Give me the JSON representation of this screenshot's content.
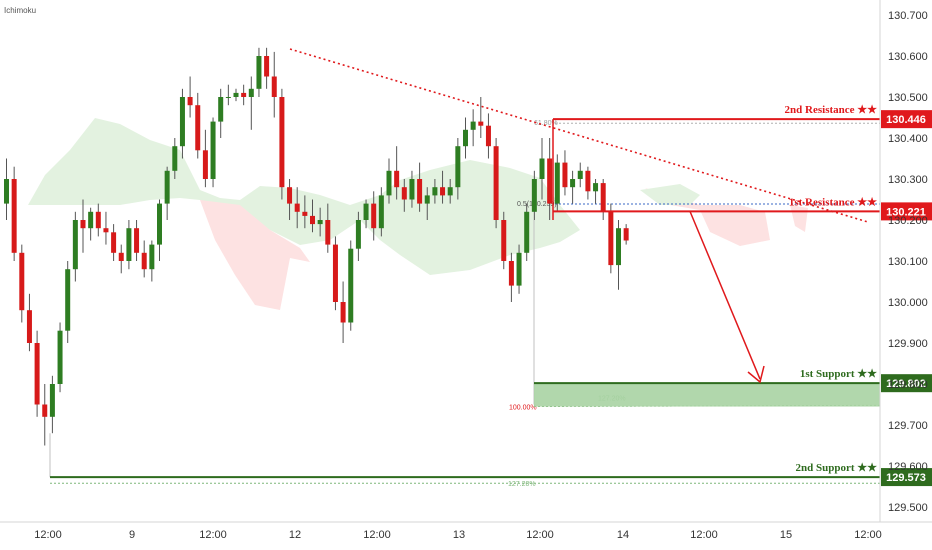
{
  "indicator_label": "Ichimoku",
  "colors": {
    "bull": "#2e7d22",
    "bear": "#d71a1a",
    "resistance": "#e0191c",
    "support": "#2e6b1e",
    "cloud_bull": "#e3f2e0",
    "cloud_bear": "#fde2e2"
  },
  "chart_data": {
    "type": "candlestick",
    "title": "",
    "xlabel": "",
    "ylabel": "",
    "ylim": [
      129.45,
      130.73
    ],
    "y_ticks": [
      "130.700",
      "130.600",
      "130.500",
      "130.400",
      "130.300",
      "130.200",
      "130.100",
      "130.000",
      "129.900",
      "129.800",
      "129.700",
      "129.600",
      "129.500"
    ],
    "x_ticks": [
      "12:00",
      "9",
      "12:00",
      "12",
      "12:00",
      "13",
      "12:00",
      "14",
      "12:00",
      "15",
      "12:00"
    ],
    "grid": false,
    "levels": [
      {
        "label": "2nd Resistance ★★",
        "value": "130.446",
        "price": 130.446,
        "kind": "resistance"
      },
      {
        "label": "1st Resistance ★★",
        "value": "130.221",
        "price": 130.221,
        "kind": "resistance"
      },
      {
        "label": "1st Support ★★",
        "value": "129.802",
        "price": 129.802,
        "kind": "support"
      },
      {
        "label": "2nd Support ★★",
        "value": "129.573",
        "price": 129.573,
        "kind": "support"
      }
    ],
    "fib_labels": {
      "top_618": "61.80%",
      "mid_05": "0.5(130.239)",
      "ext_100": "100.00%",
      "ext_1272_a": "127.20%",
      "ext_1272_b": "127.20%"
    },
    "candles": [
      [
        130.24,
        130.35,
        130.2,
        130.3
      ],
      [
        130.3,
        130.33,
        130.1,
        130.12
      ],
      [
        130.12,
        130.14,
        129.95,
        129.98
      ],
      [
        129.98,
        130.02,
        129.88,
        129.9
      ],
      [
        129.9,
        129.93,
        129.72,
        129.75
      ],
      [
        129.75,
        129.8,
        129.65,
        129.72
      ],
      [
        129.72,
        129.82,
        129.68,
        129.8
      ],
      [
        129.8,
        129.95,
        129.78,
        129.93
      ],
      [
        129.93,
        130.1,
        129.9,
        130.08
      ],
      [
        130.08,
        130.22,
        130.05,
        130.2
      ],
      [
        130.2,
        130.25,
        130.12,
        130.18
      ],
      [
        130.18,
        130.23,
        130.15,
        130.22
      ],
      [
        130.22,
        130.24,
        130.16,
        130.18
      ],
      [
        130.18,
        130.22,
        130.14,
        130.17
      ],
      [
        130.17,
        130.19,
        130.1,
        130.12
      ],
      [
        130.12,
        130.14,
        130.07,
        130.1
      ],
      [
        130.1,
        130.2,
        130.08,
        130.18
      ],
      [
        130.18,
        130.2,
        130.1,
        130.12
      ],
      [
        130.12,
        130.15,
        130.06,
        130.08
      ],
      [
        130.08,
        130.15,
        130.05,
        130.14
      ],
      [
        130.14,
        130.25,
        130.1,
        130.24
      ],
      [
        130.24,
        130.33,
        130.2,
        130.32
      ],
      [
        130.32,
        130.4,
        130.3,
        130.38
      ],
      [
        130.38,
        130.52,
        130.35,
        130.5
      ],
      [
        130.5,
        130.55,
        130.45,
        130.48
      ],
      [
        130.48,
        130.51,
        130.35,
        130.37
      ],
      [
        130.37,
        130.42,
        130.28,
        130.3
      ],
      [
        130.3,
        130.45,
        130.28,
        130.44
      ],
      [
        130.44,
        130.52,
        130.4,
        130.5
      ],
      [
        130.5,
        130.53,
        130.48,
        130.5
      ],
      [
        130.5,
        130.52,
        130.49,
        130.51
      ],
      [
        130.51,
        130.53,
        130.48,
        130.5
      ],
      [
        130.5,
        130.55,
        130.42,
        130.52
      ],
      [
        130.52,
        130.62,
        130.5,
        130.6
      ],
      [
        130.6,
        130.62,
        130.52,
        130.55
      ],
      [
        130.55,
        130.61,
        130.45,
        130.5
      ],
      [
        130.5,
        130.52,
        130.25,
        130.28
      ],
      [
        130.28,
        130.3,
        130.2,
        130.24
      ],
      [
        130.24,
        130.28,
        130.18,
        130.22
      ],
      [
        130.22,
        130.26,
        130.18,
        130.21
      ],
      [
        130.21,
        130.25,
        130.17,
        130.19
      ],
      [
        130.19,
        130.23,
        130.16,
        130.2
      ],
      [
        130.2,
        130.24,
        130.12,
        130.14
      ],
      [
        130.14,
        130.16,
        129.98,
        130.0
      ],
      [
        130.0,
        130.05,
        129.9,
        129.95
      ],
      [
        129.95,
        130.15,
        129.93,
        130.13
      ],
      [
        130.13,
        130.22,
        130.1,
        130.2
      ],
      [
        130.2,
        130.25,
        130.18,
        130.24
      ],
      [
        130.24,
        130.27,
        130.15,
        130.18
      ],
      [
        130.18,
        130.28,
        130.16,
        130.26
      ],
      [
        130.26,
        130.35,
        130.24,
        130.32
      ],
      [
        130.32,
        130.38,
        130.25,
        130.28
      ],
      [
        130.28,
        130.3,
        130.22,
        130.25
      ],
      [
        130.25,
        130.32,
        130.23,
        130.3
      ],
      [
        130.3,
        130.34,
        130.22,
        130.24
      ],
      [
        130.24,
        130.28,
        130.2,
        130.26
      ],
      [
        130.26,
        130.3,
        130.24,
        130.28
      ],
      [
        130.28,
        130.32,
        130.24,
        130.26
      ],
      [
        130.26,
        130.3,
        130.24,
        130.28
      ],
      [
        130.28,
        130.4,
        130.25,
        130.38
      ],
      [
        130.38,
        130.45,
        130.35,
        130.42
      ],
      [
        130.42,
        130.47,
        130.38,
        130.44
      ],
      [
        130.44,
        130.5,
        130.4,
        130.43
      ],
      [
        130.43,
        130.46,
        130.35,
        130.38
      ],
      [
        130.38,
        130.4,
        130.18,
        130.2
      ],
      [
        130.2,
        130.22,
        130.08,
        130.1
      ],
      [
        130.1,
        130.12,
        130.0,
        130.04
      ],
      [
        130.04,
        130.14,
        130.02,
        130.12
      ],
      [
        130.12,
        130.24,
        130.1,
        130.22
      ],
      [
        130.22,
        130.32,
        130.2,
        130.3
      ],
      [
        130.3,
        130.4,
        130.25,
        130.35
      ],
      [
        130.35,
        130.4,
        130.2,
        130.24
      ],
      [
        130.24,
        130.36,
        130.22,
        130.34
      ],
      [
        130.34,
        130.37,
        130.26,
        130.28
      ],
      [
        130.28,
        130.32,
        130.24,
        130.3
      ],
      [
        130.3,
        130.34,
        130.28,
        130.32
      ],
      [
        130.32,
        130.33,
        130.25,
        130.27
      ],
      [
        130.27,
        130.3,
        130.24,
        130.29
      ],
      [
        130.29,
        130.3,
        130.2,
        130.22
      ],
      [
        130.22,
        130.24,
        130.07,
        130.09
      ],
      [
        130.09,
        130.2,
        130.03,
        130.18
      ],
      [
        130.18,
        130.19,
        130.14,
        130.15
      ]
    ]
  }
}
